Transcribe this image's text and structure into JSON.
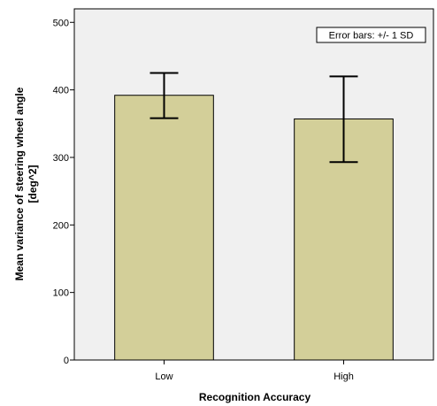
{
  "chart_data": {
    "type": "bar",
    "title": "",
    "xlabel": "Recognition Accuracy",
    "ylabel": "Mean variance of steering wheel angle",
    "ylabel_unit": "[deg^2]",
    "categories": [
      "Low",
      "High"
    ],
    "values": [
      392,
      357
    ],
    "error_bars": {
      "lower": [
        358,
        293
      ],
      "upper": [
        425,
        420
      ]
    },
    "annotation": "Error bars: +/- 1 SD",
    "ylim": [
      0,
      520
    ],
    "yticks": [
      0,
      100,
      200,
      300,
      400,
      500
    ],
    "grid": false,
    "legend_placement": "top-right",
    "colors": {
      "plot_background": "#f0f0f0",
      "bar_fill": "#d3cf99",
      "bar_stroke": "#000000"
    }
  }
}
